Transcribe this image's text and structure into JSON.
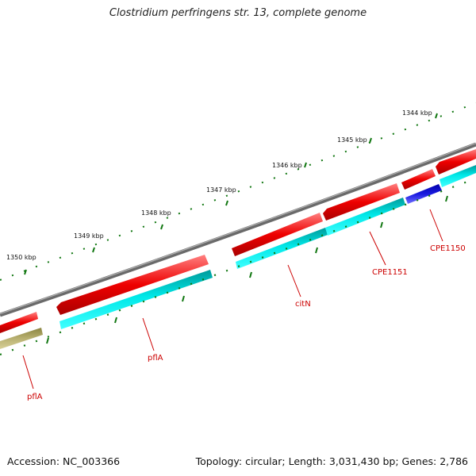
{
  "title": "Clostridium perfringens str. 13, complete genome",
  "footer": {
    "accession": "Accession: NC_003366",
    "summary": "Topology: circular; Length: 3,031,430 bp; Genes: 2,786"
  },
  "scale_labels": [
    "1344 kbp",
    "1345 kbp",
    "1346 kbp",
    "1347 kbp",
    "1348 kbp",
    "1349 kbp",
    "1350 kbp"
  ],
  "gene_labels": [
    "pflA",
    "pflA",
    "citN",
    "CPE1151",
    "CPE1150"
  ],
  "colors": {
    "backbone": "#777777",
    "forward_gene": "#ee0000",
    "cds_cyan": "#00e5e5",
    "cds_olive": "#b8b070",
    "cds_blue": "#1010cc",
    "tick": "#117711",
    "label": "#cc0000"
  }
}
